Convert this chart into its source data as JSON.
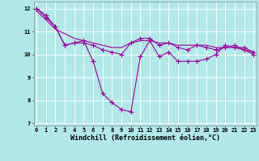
{
  "xlabel": "Windchill (Refroidissement éolien,°C)",
  "background_color": "#b3e8e8",
  "grid_color": "#ffffff",
  "line_color": "#990099",
  "x_values": [
    0,
    1,
    2,
    3,
    4,
    5,
    6,
    7,
    8,
    9,
    10,
    11,
    12,
    13,
    14,
    15,
    16,
    17,
    18,
    19,
    20,
    21,
    22,
    23
  ],
  "series1": [
    12.0,
    11.7,
    11.2,
    10.4,
    10.5,
    10.6,
    9.7,
    8.3,
    7.9,
    7.6,
    7.5,
    9.9,
    10.6,
    9.9,
    10.1,
    9.7,
    9.7,
    9.7,
    9.8,
    10.0,
    10.4,
    10.3,
    10.3,
    10.1
  ],
  "series2": [
    12.0,
    11.6,
    11.2,
    10.4,
    10.5,
    10.5,
    10.4,
    10.2,
    10.1,
    10.0,
    10.5,
    10.7,
    10.7,
    10.4,
    10.5,
    10.3,
    10.2,
    10.4,
    10.3,
    10.2,
    10.3,
    10.4,
    10.2,
    10.0
  ],
  "series3": [
    11.9,
    11.5,
    11.1,
    10.9,
    10.7,
    10.6,
    10.5,
    10.4,
    10.3,
    10.3,
    10.5,
    10.6,
    10.6,
    10.5,
    10.5,
    10.4,
    10.4,
    10.4,
    10.4,
    10.3,
    10.3,
    10.3,
    10.2,
    10.1
  ],
  "ylim": [
    6.9,
    12.3
  ],
  "xlim": [
    -0.3,
    23.3
  ],
  "yticks": [
    7,
    8,
    9,
    10,
    11,
    12
  ],
  "xticks": [
    0,
    1,
    2,
    3,
    4,
    5,
    6,
    7,
    8,
    9,
    10,
    11,
    12,
    13,
    14,
    15,
    16,
    17,
    18,
    19,
    20,
    21,
    22,
    23
  ],
  "tick_fontsize": 5.0,
  "xlabel_fontsize": 6.0,
  "marker_size": 2.0,
  "line_width": 0.8
}
